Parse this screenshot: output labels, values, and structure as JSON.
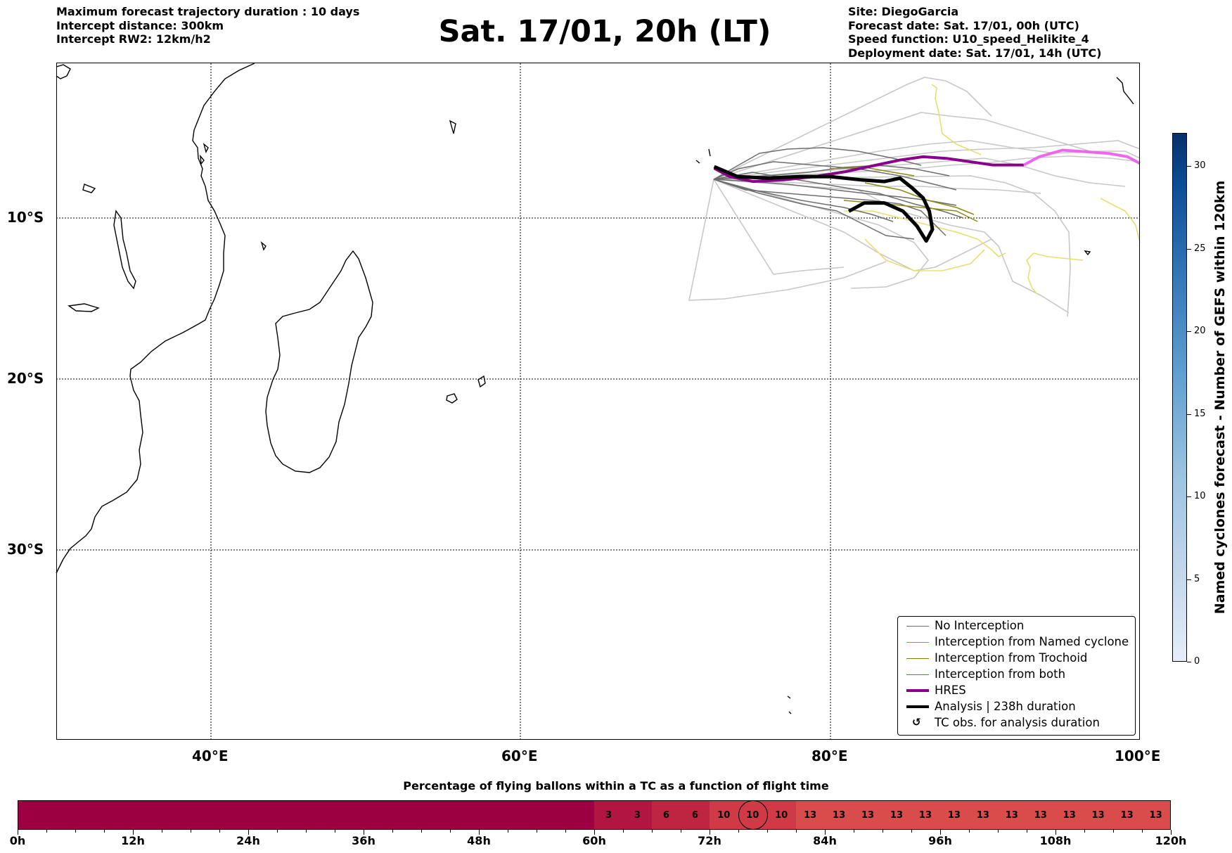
{
  "header": {
    "left_lines": [
      "Maximum forecast trajectory duration : 10 days",
      "Intercept distance: 300km",
      "Intercept RW2: 12km/h2"
    ],
    "right_lines": [
      "Site: DiegoGarcia",
      "Forecast date: Sat. 17/01, 00h (UTC)",
      "Speed function: U10_speed_Helikite_4",
      "Deployment date: Sat. 17/01, 14h (UTC)"
    ],
    "title": "Sat. 17/01, 20h (LT)"
  },
  "chart_data": [
    {
      "type": "line",
      "description_axes": "map",
      "x_ticks": [
        "40°E",
        "60°E",
        "80°E",
        "100°E"
      ],
      "x_tick_values": [
        40,
        60,
        80,
        100
      ],
      "y_ticks": [
        "10°S",
        "20°S",
        "30°S"
      ],
      "y_tick_values": [
        -10,
        -20,
        -30
      ],
      "xlim": [
        30,
        100
      ],
      "ylim": [
        -42,
        -1
      ],
      "grid": true,
      "legend_position": "lower-right",
      "legend": [
        {
          "label": "No Interception",
          "color": "#6e6e6e",
          "kind": "line"
        },
        {
          "label": "Interception from Named cyclone",
          "color": "#ff6a3d",
          "kind": "line"
        },
        {
          "label": "Interception from Trochoid",
          "color": "#808000",
          "kind": "line"
        },
        {
          "label": "Interception from both",
          "color": "#2ca02c",
          "kind": "line"
        },
        {
          "label": "HRES",
          "color": "#8b008b",
          "kind": "thick-line"
        },
        {
          "label": "Analysis | 238h duration",
          "color": "#000000",
          "kind": "thick-line"
        },
        {
          "label": "TC obs. for analysis duration",
          "color": "#000000",
          "kind": "symbol",
          "symbol": "↺"
        }
      ],
      "series": [
        {
          "name": "HRES",
          "color": "#8b008b",
          "x": [
            72.5,
            73.5,
            75,
            77,
            79,
            81,
            83,
            84.5,
            86,
            87.5,
            89,
            90.5,
            91.5,
            92.5
          ],
          "y": [
            -7.4,
            -7.9,
            -8.2,
            -8.1,
            -7.9,
            -7.6,
            -7.2,
            -6.9,
            -6.7,
            -6.8,
            -7.0,
            -7.2,
            -7.2,
            -7.2
          ]
        },
        {
          "name": "HRES-extension",
          "color": "#ee66ee",
          "x": [
            92.5,
            93.5,
            95,
            96.5,
            98,
            99.2,
            100
          ],
          "y": [
            -7.2,
            -6.7,
            -6.3,
            -6.4,
            -6.5,
            -6.7,
            -7.1
          ]
        },
        {
          "name": "Analysis | 238h duration",
          "color": "#000000",
          "x": [
            72.5,
            74,
            76,
            78,
            80,
            82,
            83.5,
            84.5,
            85.3,
            86,
            86.4,
            86.6,
            86.2,
            85.6,
            84.7,
            83.5,
            82.2,
            81.2
          ],
          "y": [
            -7.3,
            -7.9,
            -8.0,
            -7.9,
            -7.9,
            -8.1,
            -8.2,
            -8.0,
            -8.6,
            -9.2,
            -10.0,
            -11.1,
            -11.8,
            -10.9,
            -10.0,
            -9.5,
            -9.5,
            -10.0
          ]
        }
      ]
    },
    {
      "type": "heatmap",
      "title": "Percentage of flying ballons within a TC as a function of flight time",
      "x_ticks": [
        "0h",
        "12h",
        "24h",
        "36h",
        "48h",
        "60h",
        "72h",
        "84h",
        "96h",
        "108h",
        "120h"
      ],
      "bins_hours": [
        0,
        60,
        63,
        66,
        69,
        72,
        75,
        78,
        81,
        84,
        87,
        90,
        93,
        96,
        99,
        102,
        105,
        108,
        111,
        114,
        117,
        120
      ],
      "values": [
        0,
        3,
        3,
        6,
        6,
        10,
        10,
        10,
        13,
        13,
        13,
        13,
        13,
        13,
        13,
        13,
        13,
        13,
        13,
        13,
        13
      ],
      "labels": [
        "",
        "3",
        "3",
        "6",
        "6",
        "10",
        "10",
        "10",
        "13",
        "13",
        "13",
        "13",
        "13",
        "13",
        "13",
        "13",
        "13",
        "13",
        "13",
        "13",
        "13"
      ],
      "colors": [
        "#9d0040",
        "#b2153f",
        "#b2153f",
        "#bf2441",
        "#bf2441",
        "#cf3a46",
        "#cf3a46",
        "#cf3a46",
        "#da4b4b",
        "#da4b4b",
        "#da4b4b",
        "#da4b4b",
        "#da4b4b",
        "#da4b4b",
        "#da4b4b",
        "#da4b4b",
        "#da4b4b",
        "#da4b4b",
        "#da4b4b",
        "#da4b4b",
        "#da4b4b"
      ],
      "marked_bin_hour": 75
    },
    {
      "type": "colorbar",
      "label": "Named cyclones forecast - Number of GEFS within 120km",
      "ticks": [
        "0",
        "5",
        "10",
        "15",
        "20",
        "25",
        "30"
      ],
      "tick_values": [
        0,
        5,
        10,
        15,
        20,
        25,
        30
      ],
      "range": [
        0,
        32
      ],
      "cmap": "Blues"
    }
  ]
}
